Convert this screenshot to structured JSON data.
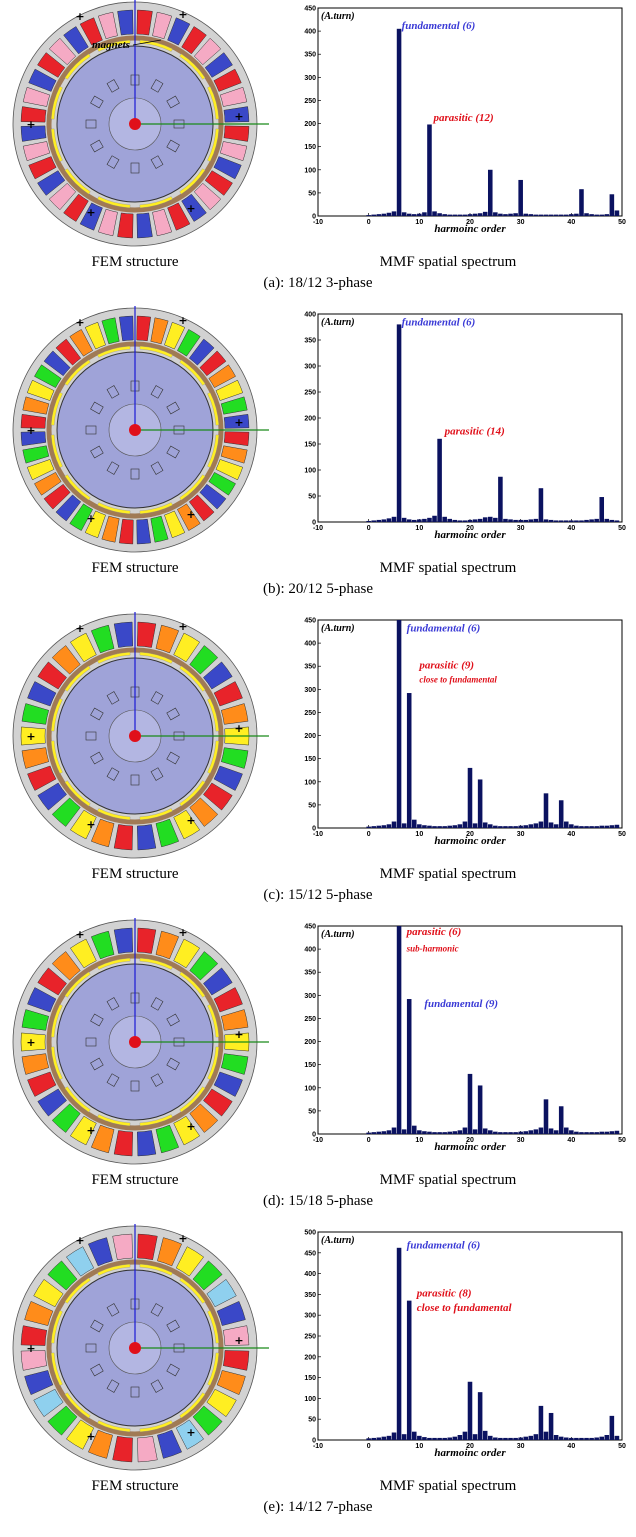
{
  "panels": [
    {
      "id": "a",
      "caption": "(a): 18/12  3-phase",
      "left_label": "FEM structure",
      "right_label": "MMF spatial spectrum",
      "motor": {
        "slots": 36,
        "pattern": [
          "#e8232a",
          "#f5aac4",
          "#3a48c8",
          "#e8232a",
          "#f5aac4",
          "#3a48c8"
        ],
        "magnets_label": "magnets"
      },
      "chart_data": {
        "type": "bar",
        "unit_label": "(A.turn)",
        "xlabel": "harmoinc order",
        "xlim": [
          -10,
          50
        ],
        "ylim": [
          0,
          450
        ],
        "xticks": [
          -10,
          0,
          10,
          20,
          30,
          40,
          50
        ],
        "yticks": [
          0,
          50,
          100,
          150,
          200,
          250,
          300,
          350,
          400,
          450
        ],
        "x": [
          0,
          1,
          2,
          3,
          4,
          5,
          6,
          7,
          8,
          9,
          10,
          11,
          12,
          13,
          14,
          15,
          16,
          17,
          18,
          19,
          20,
          21,
          22,
          23,
          24,
          25,
          26,
          27,
          28,
          29,
          30,
          31,
          32,
          33,
          34,
          35,
          36,
          37,
          38,
          39,
          40,
          41,
          42,
          43,
          44,
          45,
          46,
          47,
          48,
          49
        ],
        "values": [
          2,
          3,
          4,
          5,
          7,
          10,
          405,
          8,
          5,
          4,
          5,
          8,
          198,
          10,
          6,
          4,
          3,
          3,
          3,
          3,
          4,
          5,
          6,
          9,
          100,
          8,
          5,
          4,
          5,
          6,
          78,
          5,
          4,
          3,
          3,
          3,
          3,
          3,
          3,
          3,
          4,
          5,
          58,
          6,
          4,
          3,
          3,
          4,
          47,
          12
        ],
        "annotations": [
          {
            "text": "fundamental (6)",
            "x": 6.5,
            "y": 405,
            "color": "#3a3ad6"
          },
          {
            "text": "parasitic (12)",
            "x": 12.8,
            "y": 205,
            "color": "#e0101a"
          }
        ]
      }
    },
    {
      "id": "b",
      "caption": "(b): 20/12  5-phase",
      "left_label": "FEM structure",
      "right_label": "MMF spatial spectrum",
      "motor": {
        "slots": 40,
        "pattern": [
          "#e8232a",
          "#ff8c1a",
          "#ffee22",
          "#22dd22",
          "#3a48c8"
        ]
      },
      "chart_data": {
        "type": "bar",
        "unit_label": "(A.turn)",
        "xlabel": "harmoinc order",
        "xlim": [
          -10,
          50
        ],
        "ylim": [
          0,
          400
        ],
        "xticks": [
          -10,
          0,
          10,
          20,
          30,
          40,
          50
        ],
        "yticks": [
          0,
          50,
          100,
          150,
          200,
          250,
          300,
          350,
          400
        ],
        "x": [
          0,
          1,
          2,
          3,
          4,
          5,
          6,
          7,
          8,
          9,
          10,
          11,
          12,
          13,
          14,
          15,
          16,
          17,
          18,
          19,
          20,
          21,
          22,
          23,
          24,
          25,
          26,
          27,
          28,
          29,
          30,
          31,
          32,
          33,
          34,
          35,
          36,
          37,
          38,
          39,
          40,
          41,
          42,
          43,
          44,
          45,
          46,
          47,
          48,
          49
        ],
        "values": [
          2,
          3,
          4,
          5,
          7,
          10,
          380,
          8,
          5,
          4,
          5,
          6,
          8,
          12,
          160,
          10,
          6,
          4,
          3,
          3,
          4,
          5,
          6,
          9,
          10,
          8,
          87,
          6,
          5,
          4,
          4,
          4,
          5,
          6,
          65,
          5,
          4,
          3,
          3,
          3,
          3,
          3,
          3,
          4,
          5,
          6,
          48,
          6,
          4,
          3
        ],
        "annotations": [
          {
            "text": "fundamental (6)",
            "x": 6.5,
            "y": 378,
            "color": "#3a3ad6"
          },
          {
            "text": "parasitic (14)",
            "x": 15.0,
            "y": 168,
            "color": "#e0101a"
          }
        ]
      }
    },
    {
      "id": "c",
      "caption": "(c): 15/12  5-phase",
      "left_label": "FEM structure",
      "right_label": "MMF spatial spectrum",
      "motor": {
        "slots": 30,
        "pattern": [
          "#e8232a",
          "#ff8c1a",
          "#ffee22",
          "#22dd22",
          "#3a48c8"
        ]
      },
      "chart_data": {
        "type": "bar",
        "unit_label": "(A.turn)",
        "xlabel": "harmoinc order",
        "xlim": [
          -10,
          50
        ],
        "ylim": [
          0,
          450
        ],
        "xticks": [
          -10,
          0,
          10,
          20,
          30,
          40,
          50
        ],
        "yticks": [
          0,
          50,
          100,
          150,
          200,
          250,
          300,
          350,
          400,
          450
        ],
        "x": [
          0,
          1,
          2,
          3,
          4,
          5,
          6,
          7,
          8,
          9,
          10,
          11,
          12,
          13,
          14,
          15,
          16,
          17,
          18,
          19,
          20,
          21,
          22,
          23,
          24,
          25,
          26,
          27,
          28,
          29,
          30,
          31,
          32,
          33,
          34,
          35,
          36,
          37,
          38,
          39,
          40,
          41,
          42,
          43,
          44,
          45,
          46,
          47,
          48,
          49
        ],
        "values": [
          3,
          4,
          5,
          6,
          8,
          14,
          450,
          10,
          292,
          18,
          8,
          6,
          5,
          4,
          4,
          4,
          5,
          6,
          8,
          14,
          130,
          10,
          105,
          12,
          8,
          5,
          4,
          4,
          4,
          4,
          5,
          6,
          8,
          10,
          14,
          75,
          12,
          8,
          60,
          14,
          8,
          5,
          4,
          4,
          4,
          4,
          5,
          5,
          6,
          7
        ],
        "annotations": [
          {
            "text": "fundamental (6)",
            "x": 7.5,
            "y": 425,
            "color": "#3a3ad6"
          },
          {
            "text": "parasitic (9)",
            "x": 10.0,
            "y": 345,
            "color": "#e0101a"
          },
          {
            "text": "close to fundamental",
            "x": 10.0,
            "y": 315,
            "color": "#e0101a",
            "small": true
          }
        ]
      }
    },
    {
      "id": "d",
      "caption": "(d): 15/18  5-phase",
      "left_label": "FEM structure",
      "right_label": "MMF spatial spectrum",
      "motor": {
        "slots": 30,
        "pattern": [
          "#e8232a",
          "#ff8c1a",
          "#ffee22",
          "#22dd22",
          "#3a48c8"
        ]
      },
      "chart_data": {
        "type": "bar",
        "unit_label": "(A.turn)",
        "xlabel": "harmoinc order",
        "xlim": [
          -10,
          50
        ],
        "ylim": [
          0,
          450
        ],
        "xticks": [
          -10,
          0,
          10,
          20,
          30,
          40,
          50
        ],
        "yticks": [
          0,
          50,
          100,
          150,
          200,
          250,
          300,
          350,
          400,
          450
        ],
        "x": [
          0,
          1,
          2,
          3,
          4,
          5,
          6,
          7,
          8,
          9,
          10,
          11,
          12,
          13,
          14,
          15,
          16,
          17,
          18,
          19,
          20,
          21,
          22,
          23,
          24,
          25,
          26,
          27,
          28,
          29,
          30,
          31,
          32,
          33,
          34,
          35,
          36,
          37,
          38,
          39,
          40,
          41,
          42,
          43,
          44,
          45,
          46,
          47,
          48,
          49
        ],
        "values": [
          3,
          4,
          5,
          6,
          8,
          14,
          450,
          10,
          292,
          18,
          8,
          6,
          5,
          4,
          4,
          4,
          5,
          6,
          8,
          14,
          130,
          10,
          105,
          12,
          8,
          5,
          4,
          4,
          4,
          4,
          5,
          6,
          8,
          10,
          14,
          75,
          12,
          8,
          60,
          14,
          8,
          5,
          4,
          4,
          4,
          4,
          5,
          5,
          6,
          7
        ],
        "annotations": [
          {
            "text": "parasitic (6)",
            "x": 7.5,
            "y": 430,
            "color": "#e0101a"
          },
          {
            "text": "sub-harmonic",
            "x": 7.5,
            "y": 395,
            "color": "#e0101a",
            "small": true
          },
          {
            "text": "fundamental (9)",
            "x": 11.0,
            "y": 275,
            "color": "#3a3ad6"
          }
        ]
      }
    },
    {
      "id": "e",
      "caption": "(e): 14/12  7-phase",
      "left_label": "FEM structure",
      "right_label": "MMF spatial spectrum",
      "motor": {
        "slots": 28,
        "pattern": [
          "#e8232a",
          "#ff8c1a",
          "#ffee22",
          "#22dd22",
          "#8fd0ee",
          "#3a48c8",
          "#f5aac4"
        ]
      },
      "chart_data": {
        "type": "bar",
        "unit_label": "(A.turn)",
        "xlabel": "harmoinc order",
        "xlim": [
          -10,
          50
        ],
        "ylim": [
          0,
          500
        ],
        "xticks": [
          -10,
          0,
          10,
          20,
          30,
          40,
          50
        ],
        "yticks": [
          0,
          50,
          100,
          150,
          200,
          250,
          300,
          350,
          400,
          450,
          500
        ],
        "x": [
          0,
          1,
          2,
          3,
          4,
          5,
          6,
          7,
          8,
          9,
          10,
          11,
          12,
          13,
          14,
          15,
          16,
          17,
          18,
          19,
          20,
          21,
          22,
          23,
          24,
          25,
          26,
          27,
          28,
          29,
          30,
          31,
          32,
          33,
          34,
          35,
          36,
          37,
          38,
          39,
          40,
          41,
          42,
          43,
          44,
          45,
          46,
          47,
          48,
          49
        ],
        "values": [
          4,
          5,
          6,
          8,
          10,
          18,
          462,
          14,
          335,
          20,
          10,
          7,
          5,
          5,
          5,
          5,
          6,
          8,
          12,
          20,
          140,
          14,
          115,
          22,
          10,
          6,
          5,
          5,
          5,
          5,
          6,
          8,
          10,
          14,
          82,
          20,
          65,
          12,
          8,
          6,
          5,
          5,
          5,
          5,
          5,
          6,
          8,
          12,
          58,
          10
        ],
        "annotations": [
          {
            "text": "fundamental (6)",
            "x": 7.5,
            "y": 460,
            "color": "#3a3ad6"
          },
          {
            "text": "parasitic (8)",
            "x": 9.5,
            "y": 345,
            "color": "#e0101a"
          },
          {
            "text": "close to fundamental",
            "x": 9.5,
            "y": 310,
            "color": "#e0101a"
          }
        ]
      }
    }
  ]
}
